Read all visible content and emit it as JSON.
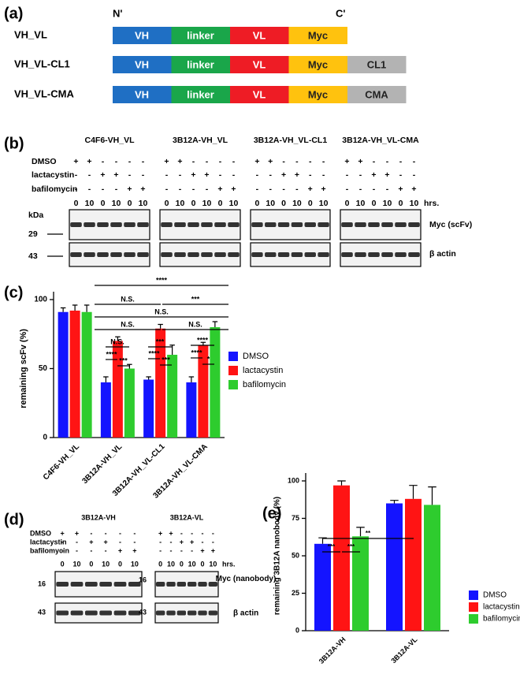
{
  "panel_labels": [
    "(a)",
    "(b)",
    "(c)",
    "(d)",
    "(e)"
  ],
  "panel_a": {
    "n_term": "N'",
    "c_term": "C'",
    "constructs": [
      {
        "name": "VH_VL",
        "domains": [
          "VH",
          "linker",
          "VL",
          "Myc"
        ]
      },
      {
        "name": "VH_VL-CL1",
        "domains": [
          "VH",
          "linker",
          "VL",
          "Myc",
          "CL1"
        ]
      },
      {
        "name": "VH_VL-CMA",
        "domains": [
          "VH",
          "linker",
          "VL",
          "Myc",
          "CMA"
        ]
      }
    ]
  },
  "panel_b": {
    "groups": [
      "C4F6-VH_VL",
      "3B12A-VH_VL",
      "3B12A-VH_VL-CL1",
      "3B12A-VH_VL-CMA"
    ],
    "treatments": [
      {
        "name": "DMSO",
        "signs": [
          "+",
          "+",
          "-",
          "-",
          "-",
          "-"
        ]
      },
      {
        "name": "lactacystin",
        "signs": [
          "-",
          "-",
          "+",
          "+",
          "-",
          "-"
        ]
      },
      {
        "name": "bafilomycin",
        "signs": [
          "-",
          "-",
          "-",
          "-",
          "+",
          "+"
        ]
      }
    ],
    "times": [
      0,
      10,
      0,
      10,
      0,
      10
    ],
    "time_unit": "hrs.",
    "kda": "kDa",
    "markers": [
      29,
      43
    ],
    "blots": [
      "Myc (scFv)",
      "β actin"
    ]
  },
  "chart_data": [
    {
      "type": "bar",
      "y_label": "remaining scFv (%)",
      "categories": [
        "C4F6-VH_VL",
        "3B12A-VH_VL",
        "3B12A-VH_VL-CL1",
        "3B12A-VH_VL-CMA"
      ],
      "series": [
        {
          "name": "DMSO",
          "color": "#1414ff",
          "values": [
            91,
            40,
            42,
            40
          ],
          "errors": [
            3,
            4,
            2,
            4
          ]
        },
        {
          "name": "lactacystin",
          "color": "#ff1414",
          "values": [
            92,
            70,
            79,
            67
          ],
          "errors": [
            4,
            3,
            3,
            2
          ]
        },
        {
          "name": "bafilomycin",
          "color": "#2ecc2e",
          "values": [
            91,
            50,
            60,
            80
          ],
          "errors": [
            5,
            3,
            7,
            4
          ]
        }
      ],
      "ylim": [
        0,
        100
      ],
      "yticks": [
        0,
        50,
        100
      ],
      "legend": "right",
      "annotations": [
        "****",
        "N.S.",
        "***",
        "N.S.",
        "N.S.",
        "N.S.",
        "N.S.",
        "****",
        "***",
        "***",
        "****",
        "***",
        "****",
        "****",
        "*"
      ]
    },
    {
      "type": "bar",
      "y_label": "remaining 3B12A nanobody (%)",
      "categories": [
        "3B12A-VH",
        "3B12A-VL"
      ],
      "series": [
        {
          "name": "DMSO",
          "color": "#1414ff",
          "values": [
            58,
            85
          ],
          "errors": [
            4,
            2
          ]
        },
        {
          "name": "lactacystin",
          "color": "#ff1414",
          "values": [
            97,
            88
          ],
          "errors": [
            3,
            9
          ]
        },
        {
          "name": "bafilomycin",
          "color": "#2ecc2e",
          "values": [
            63,
            84
          ],
          "errors": [
            6,
            12
          ]
        }
      ],
      "ylim": [
        0,
        100
      ],
      "yticks": [
        0,
        25,
        50,
        75,
        100
      ],
      "legend": "right",
      "annotations": [
        "**",
        "***",
        "***"
      ]
    }
  ],
  "panel_d": {
    "groups": [
      "3B12A-VH",
      "3B12A-VL"
    ],
    "treatments": [
      {
        "name": "DMSO",
        "signs": [
          "+",
          "+",
          "-",
          "-",
          "-",
          "-"
        ]
      },
      {
        "name": "lactacystin",
        "signs": [
          "-",
          "-",
          "+",
          "+",
          "-",
          "-"
        ]
      },
      {
        "name": "bafilomycin",
        "signs": [
          "-",
          "-",
          "-",
          "-",
          "+",
          "+"
        ]
      }
    ],
    "times": [
      0,
      10,
      0,
      10,
      0,
      10
    ],
    "time_unit": "hrs.",
    "markers": [
      16,
      43
    ],
    "blots": [
      "Myc (nanobody)",
      "β actin"
    ]
  }
}
